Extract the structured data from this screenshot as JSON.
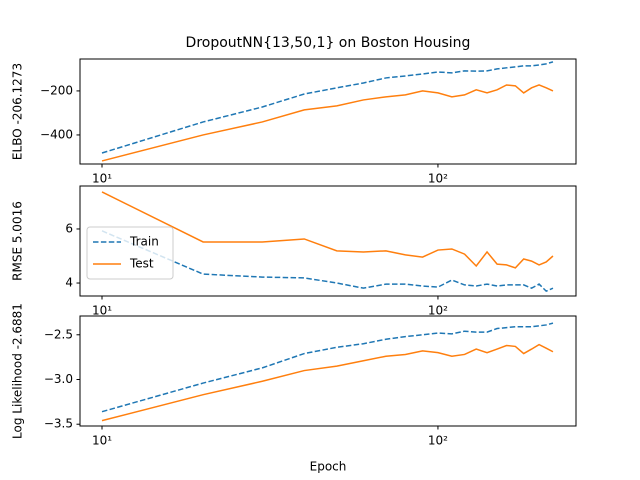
{
  "chart_data": [
    {
      "type": "line",
      "title": "DropoutNN{13,50,1} on Boston Housing",
      "ylabel": "ELBO -206.1273",
      "xscale": "log",
      "x": [
        10,
        20,
        30,
        40,
        50,
        60,
        70,
        80,
        90,
        100,
        110,
        120,
        130,
        140,
        150,
        160,
        170,
        180,
        190,
        200,
        210,
        220
      ],
      "xlim": [
        8.6,
        257.6
      ],
      "xticks": [
        {
          "value": 10,
          "label": "10¹"
        },
        {
          "value": 100,
          "label": "10²"
        }
      ],
      "ylim": [
        -532,
        -55
      ],
      "yticks": [
        {
          "value": -400,
          "label": "−400"
        },
        {
          "value": -200,
          "label": "−200"
        }
      ],
      "series": [
        {
          "color": "#1f77b4",
          "linestyle": "dashed",
          "values": [
            -482,
            -341,
            -273,
            -214,
            -186,
            -164,
            -141,
            -132,
            -123,
            -114,
            -118,
            -109,
            -110,
            -109,
            -100,
            -95,
            -91,
            -86,
            -86,
            -82,
            -77,
            -68
          ]
        },
        {
          "color": "#ff7f0e",
          "linestyle": "solid",
          "values": [
            -518,
            -400,
            -341,
            -286,
            -268,
            -241,
            -227,
            -218,
            -200,
            -209,
            -227,
            -218,
            -195,
            -209,
            -195,
            -173,
            -177,
            -209,
            -186,
            -173,
            -186,
            -200
          ]
        }
      ]
    },
    {
      "type": "line",
      "ylabel": "RMSE 5.0016",
      "xscale": "log",
      "x": [
        10,
        20,
        30,
        40,
        50,
        60,
        70,
        80,
        90,
        100,
        110,
        120,
        130,
        140,
        150,
        160,
        170,
        180,
        190,
        200,
        210,
        220
      ],
      "xlim": [
        8.6,
        257.6
      ],
      "xticks": [
        {
          "value": 10,
          "label": "10¹"
        },
        {
          "value": 100,
          "label": "10²"
        }
      ],
      "ylim": [
        3.52,
        7.59
      ],
      "yticks": [
        4,
        6
      ],
      "legend": "center left",
      "series": [
        {
          "name": "Train",
          "color": "#1f77b4",
          "linestyle": "dashed",
          "values": [
            5.93,
            4.33,
            4.22,
            4.19,
            4.0,
            3.81,
            3.96,
            3.96,
            3.89,
            3.85,
            4.11,
            3.93,
            3.89,
            3.96,
            3.89,
            3.93,
            3.93,
            3.93,
            3.81,
            3.96,
            3.7,
            3.81
          ]
        },
        {
          "name": "Test",
          "color": "#ff7f0e",
          "linestyle": "solid",
          "values": [
            7.37,
            5.52,
            5.52,
            5.63,
            5.19,
            5.15,
            5.19,
            5.04,
            4.96,
            5.22,
            5.26,
            5.07,
            4.63,
            5.15,
            4.7,
            4.67,
            4.56,
            4.89,
            4.81,
            4.67,
            4.78,
            5.0
          ]
        }
      ]
    },
    {
      "type": "line",
      "ylabel": "Log Likelihood -2.6881",
      "xlabel": "Epoch",
      "xscale": "log",
      "x": [
        10,
        20,
        30,
        40,
        50,
        60,
        70,
        80,
        90,
        100,
        110,
        120,
        130,
        140,
        150,
        160,
        170,
        180,
        190,
        200,
        210,
        220
      ],
      "xlim": [
        8.6,
        257.6
      ],
      "xticks": [
        {
          "value": 10,
          "label": "10¹"
        },
        {
          "value": 100,
          "label": "10²"
        }
      ],
      "ylim": [
        -3.52,
        -2.29
      ],
      "yticks": [
        {
          "value": -3.5,
          "label": "−3.5"
        },
        {
          "value": -3.0,
          "label": "−3.0"
        },
        {
          "value": -2.5,
          "label": "−2.5"
        }
      ],
      "series": [
        {
          "color": "#1f77b4",
          "linestyle": "dashed",
          "values": [
            -3.36,
            -3.04,
            -2.87,
            -2.71,
            -2.64,
            -2.6,
            -2.55,
            -2.52,
            -2.5,
            -2.48,
            -2.49,
            -2.46,
            -2.47,
            -2.47,
            -2.43,
            -2.42,
            -2.41,
            -2.41,
            -2.41,
            -2.4,
            -2.39,
            -2.37
          ]
        },
        {
          "color": "#ff7f0e",
          "linestyle": "solid",
          "values": [
            -3.46,
            -3.17,
            -3.02,
            -2.9,
            -2.85,
            -2.79,
            -2.74,
            -2.72,
            -2.68,
            -2.7,
            -2.74,
            -2.72,
            -2.66,
            -2.7,
            -2.66,
            -2.62,
            -2.63,
            -2.71,
            -2.66,
            -2.61,
            -2.65,
            -2.69
          ]
        }
      ]
    }
  ]
}
